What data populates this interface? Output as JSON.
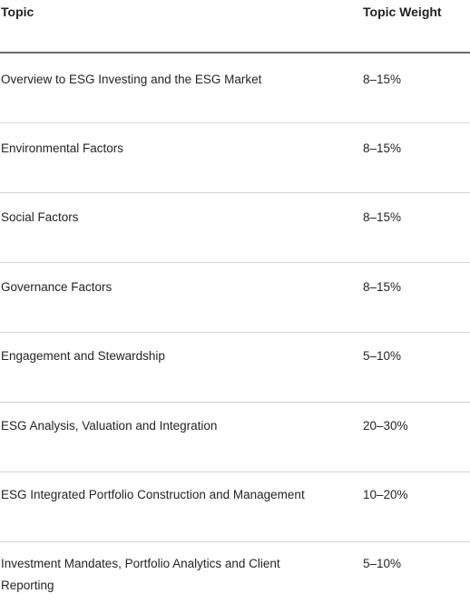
{
  "headers": {
    "topic": "Topic",
    "weight": "Topic Weight"
  },
  "rows": [
    {
      "topic": "Overview to ESG Investing and the ESG Market",
      "weight": "8–15%"
    },
    {
      "topic": "Environmental Factors",
      "weight": "8–15%"
    },
    {
      "topic": "Social Factors",
      "weight": "8–15%"
    },
    {
      "topic": "Governance Factors",
      "weight": "8–15%"
    },
    {
      "topic": "Engagement and Stewardship",
      "weight": "5–10%"
    },
    {
      "topic": "ESG Analysis, Valuation and Integration",
      "weight": "20–30%"
    },
    {
      "topic": "ESG Integrated Portfolio Construction and Management",
      "weight": "10–20%"
    },
    {
      "topic": "Investment Mandates, Portfolio Analytics and Client Reporting",
      "weight": "5–10%"
    }
  ]
}
